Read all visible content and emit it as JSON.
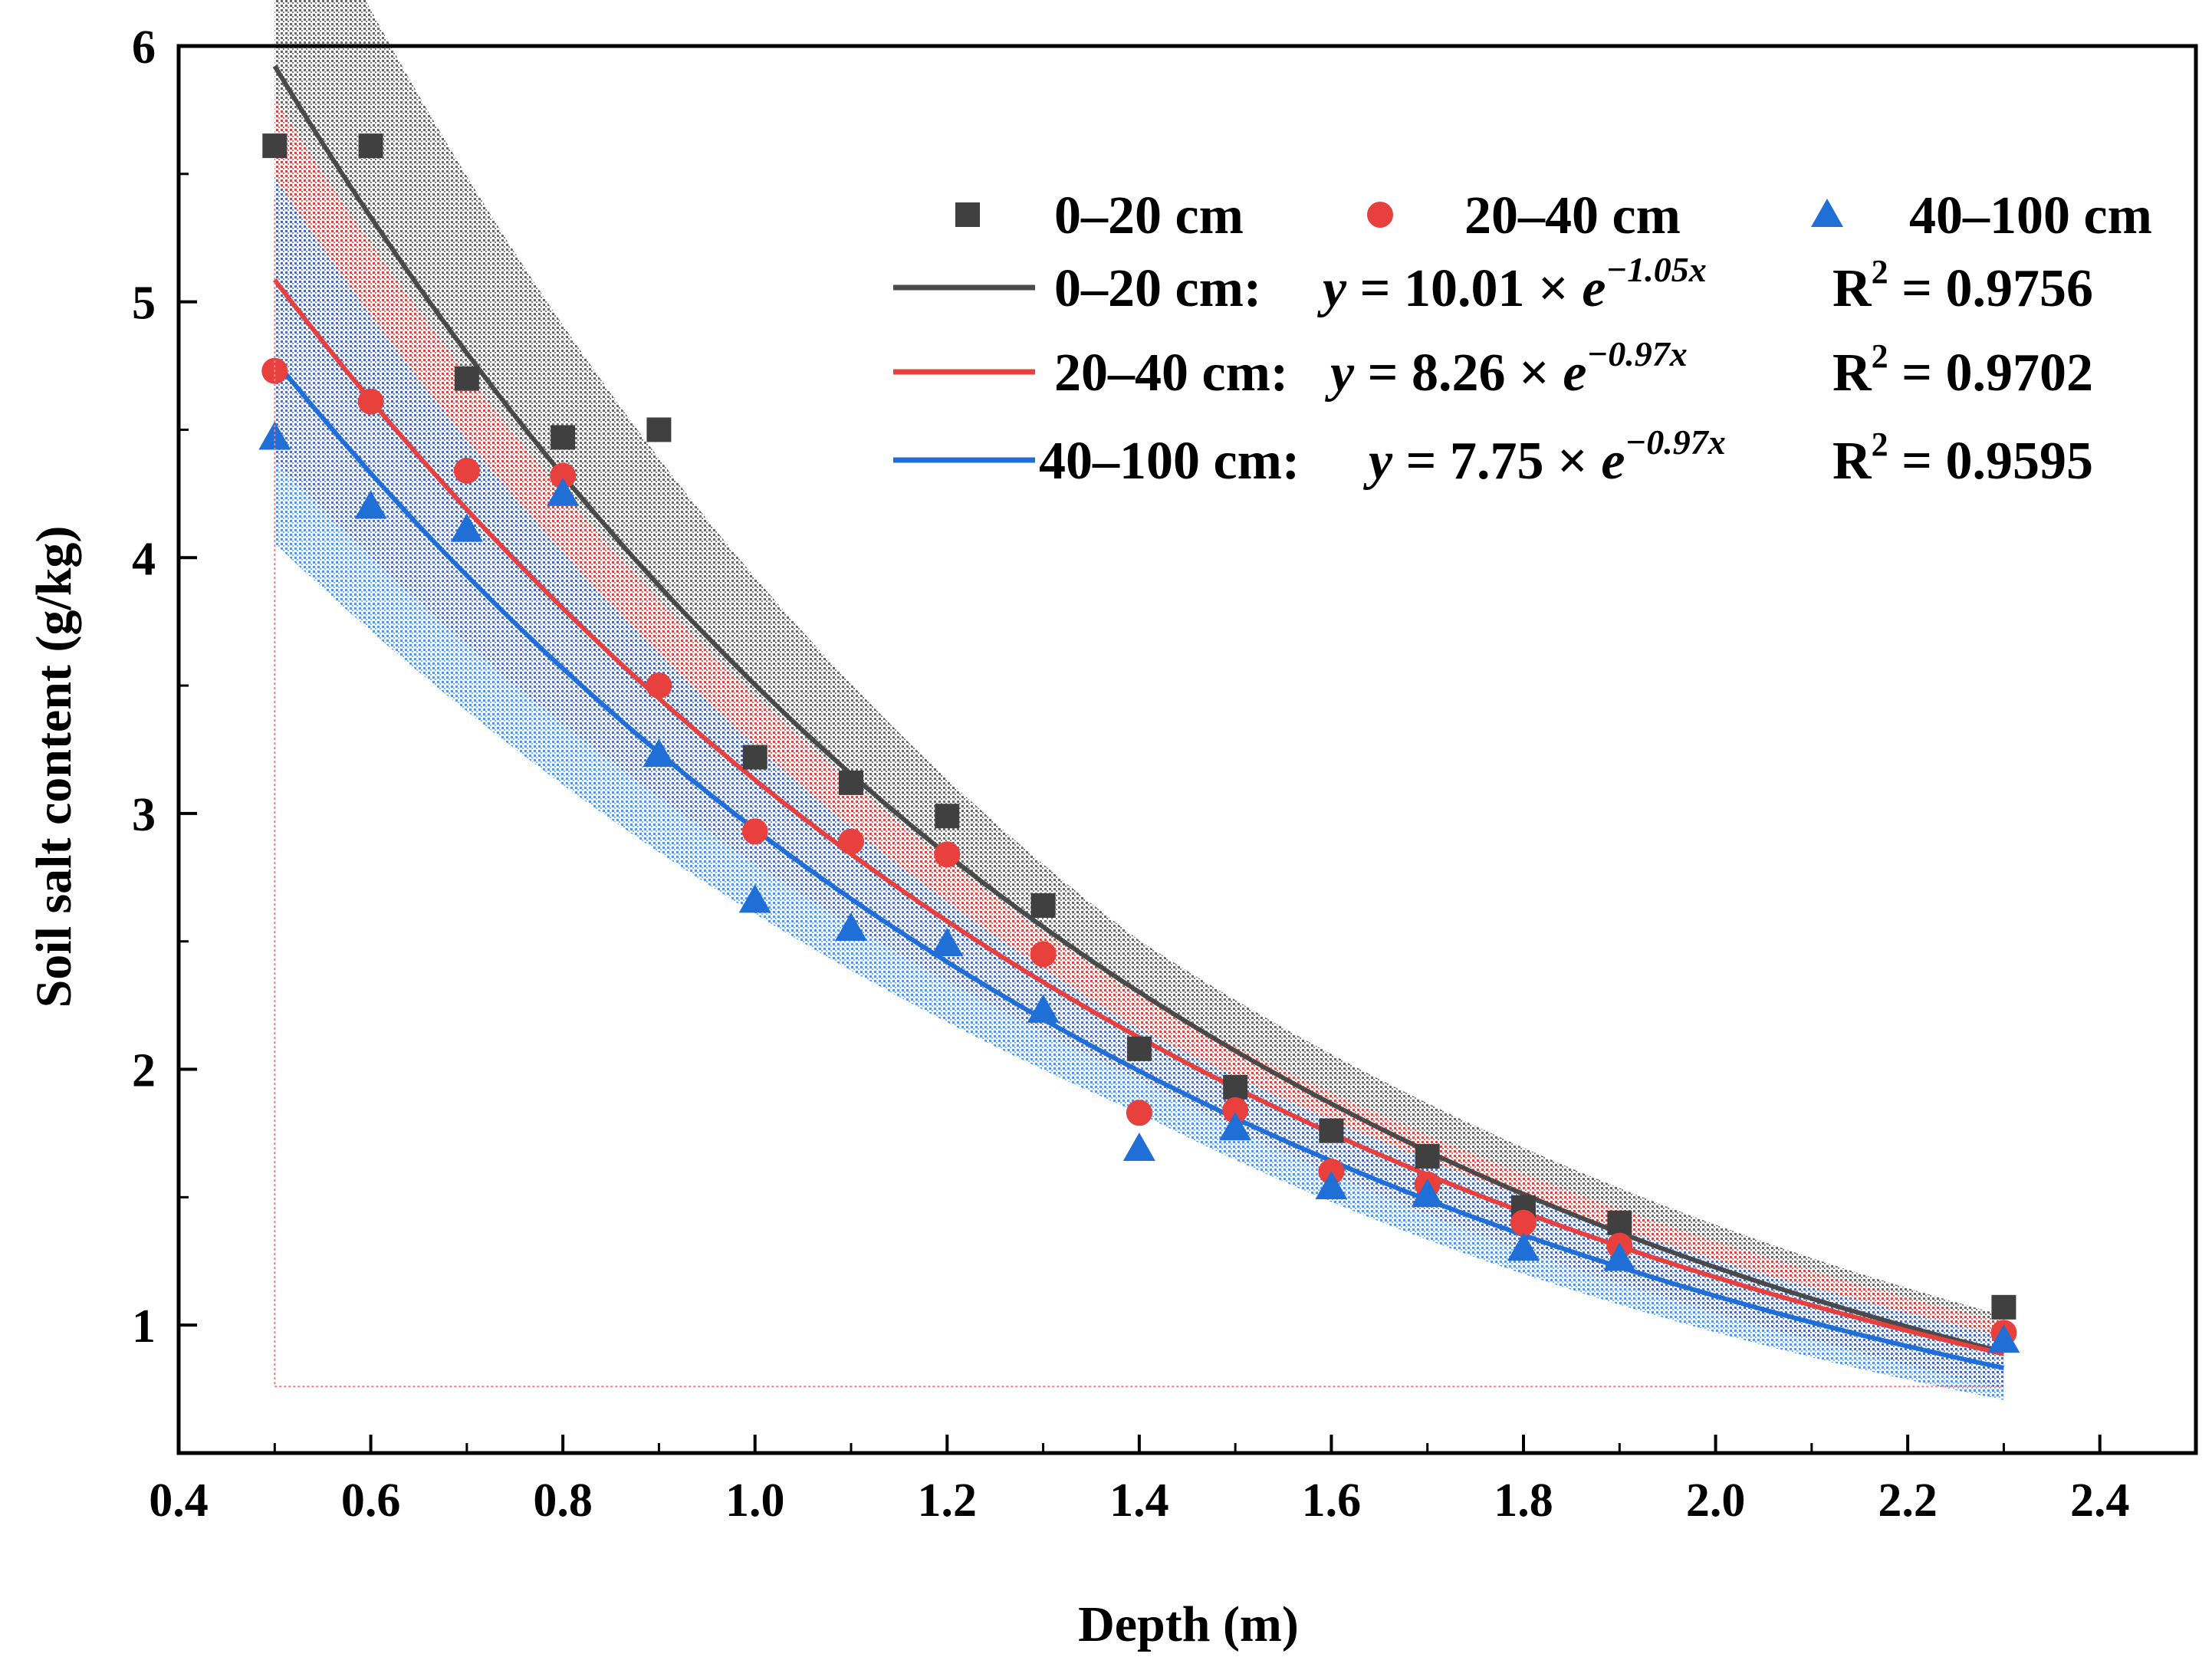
{
  "chart_data": {
    "type": "scatter",
    "xlabel": "Depth (m)",
    "ylabel": "Soil salt content (g/kg)",
    "xlim": [
      0.4,
      2.5
    ],
    "ylim": [
      0.5,
      6
    ],
    "xticks": [
      0.4,
      0.6,
      0.8,
      1.0,
      1.2,
      1.4,
      1.6,
      1.8,
      2.0,
      2.2,
      2.4
    ],
    "xtick_labels": [
      "0.4",
      "0.6",
      "0.8",
      "1.0",
      "1.2",
      "1.4",
      "1.6",
      "1.8",
      "2.0",
      "2.2",
      "2.4"
    ],
    "yticks": [
      1,
      2,
      3,
      4,
      5,
      6
    ],
    "ytick_labels": [
      "1",
      "2",
      "3",
      "4",
      "5",
      "6"
    ],
    "legend_position": "top-right",
    "series": [
      {
        "name": "0–20 cm",
        "marker": "square",
        "color": "#404040",
        "x": [
          0.5,
          0.6,
          0.7,
          0.8,
          0.9,
          1.0,
          1.1,
          1.2,
          1.3,
          1.4,
          1.5,
          1.6,
          1.7,
          1.8,
          1.9,
          2.3
        ],
        "y": [
          5.61,
          5.61,
          4.7,
          4.47,
          4.5,
          3.22,
          3.12,
          2.99,
          2.64,
          2.08,
          1.93,
          1.76,
          1.66,
          1.46,
          1.4,
          1.07
        ],
        "fit": {
          "a": 10.01,
          "b": -1.05,
          "r2": "0.9756",
          "label": "0–20 cm:",
          "eq_y": "y",
          "eq_body": " = 10.01 × ",
          "eq_e": "e",
          "eq_exp": "−1.05x",
          "r2_prefix": "R",
          "r2_sup": "2",
          "r2_suffix": " = 0.9756",
          "color": "#4a4a4a",
          "band": 0.16
        }
      },
      {
        "name": "20–40 cm",
        "marker": "circle",
        "color": "#e8403c",
        "x": [
          0.5,
          0.6,
          0.7,
          0.8,
          0.9,
          1.0,
          1.1,
          1.2,
          1.3,
          1.4,
          1.5,
          1.6,
          1.7,
          1.8,
          1.9,
          2.3
        ],
        "y": [
          4.73,
          4.61,
          4.34,
          4.32,
          3.5,
          2.93,
          2.89,
          2.84,
          2.45,
          1.83,
          1.84,
          1.6,
          1.55,
          1.4,
          1.31,
          0.97
        ],
        "fit": {
          "a": 8.26,
          "b": -0.97,
          "r2": "0.9702",
          "label": "20–40 cm:",
          "eq_y": "y",
          "eq_body": " = 8.26 × ",
          "eq_e": "e",
          "eq_exp": "−0.97x",
          "r2_prefix": "R",
          "r2_sup": "2",
          "r2_suffix": " = 0.9702",
          "color": "#e8403c",
          "band": 0.14
        }
      },
      {
        "name": "40–100 cm",
        "marker": "triangle",
        "color": "#1f6fd6",
        "x": [
          0.5,
          0.6,
          0.7,
          0.8,
          0.9,
          1.0,
          1.1,
          1.2,
          1.3,
          1.4,
          1.5,
          1.6,
          1.7,
          1.8,
          1.9,
          2.3
        ],
        "y": [
          4.47,
          4.2,
          4.11,
          4.25,
          3.23,
          2.66,
          2.55,
          2.49,
          2.23,
          1.69,
          1.77,
          1.54,
          1.51,
          1.3,
          1.26,
          0.94
        ],
        "fit": {
          "a": 7.75,
          "b": -0.97,
          "r2": "0.9595",
          "label": "40–100 cm:",
          "eq_y": "y",
          "eq_body": " = 7.75 × ",
          "eq_e": "e",
          "eq_exp": "−0.97x",
          "r2_prefix": "R",
          "r2_sup": "2",
          "r2_suffix": " = 0.9595",
          "color": "#1f6fd6",
          "band": 0.15
        }
      }
    ]
  }
}
